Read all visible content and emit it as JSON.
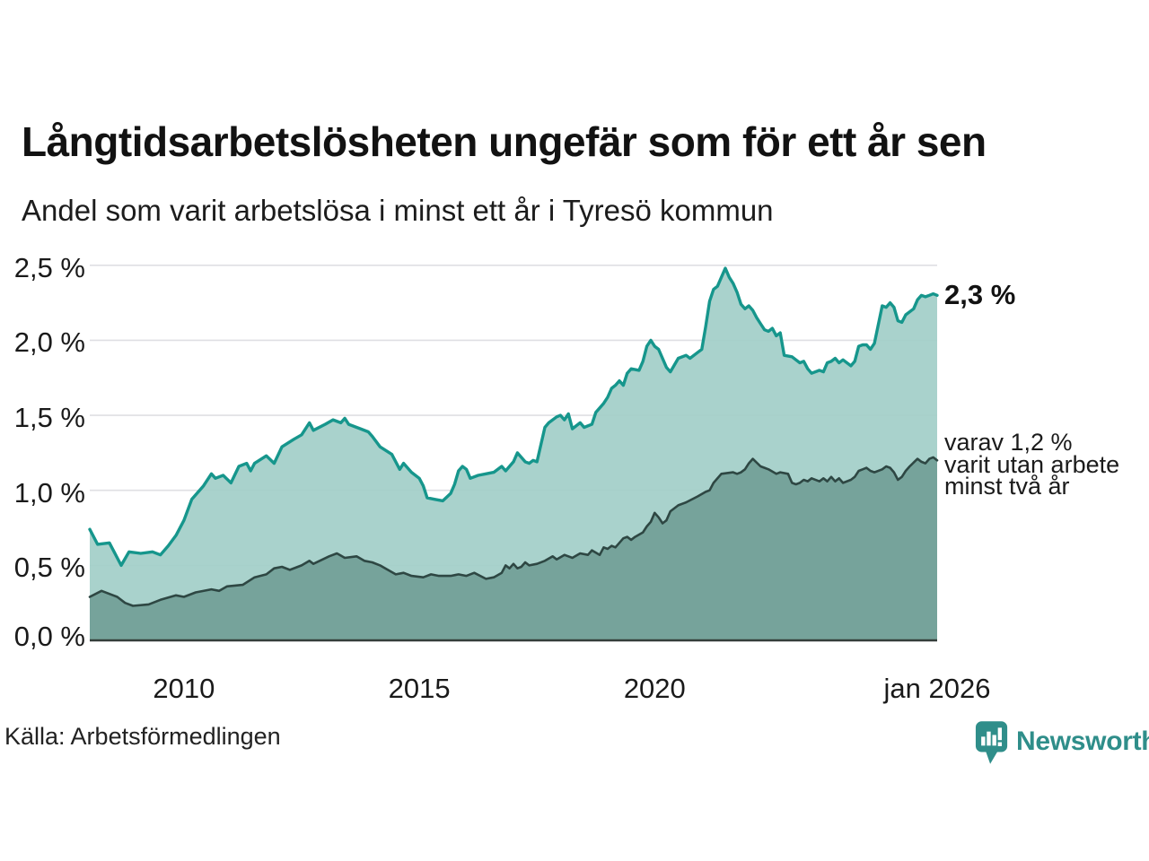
{
  "title": "Långtidsarbetslösheten ungefär som för ett år sen",
  "subtitle": "Andel som varit arbetslösa i minst ett år i Tyresö kommun",
  "source": "Källa: Arbetsförmedlingen",
  "branding": {
    "name": "Newsworthy"
  },
  "annotations": {
    "latest_total": "2,3 %",
    "secondary_line1": "varav 1,2 %",
    "secondary_line2": "varit utan arbete",
    "secondary_line3": "minst två år"
  },
  "colors": {
    "series1_stroke": "#16968c",
    "series1_fill": "#a2cfc8",
    "series2_stroke": "#2e4743",
    "series2_fill": "#73a098",
    "gridline": "#dfdfe3",
    "axis_line": "#343e3b",
    "text": "#1a1a1a",
    "brand_teal": "#2f8e8a"
  },
  "chart_data": {
    "type": "area",
    "title": "Långtidsarbetslösheten ungefär som för ett år sen",
    "subtitle": "Andel som varit arbetslösa i minst ett år i Tyresö kommun",
    "x_unit": "months since 2008-01 (monthly data, ends jan 2026)",
    "ylim": [
      0,
      2.5
    ],
    "grid": "horizontal",
    "y_ticks": [
      {
        "value": 0.0,
        "label": "0,0 %"
      },
      {
        "value": 0.5,
        "label": "0,5 %"
      },
      {
        "value": 1.0,
        "label": "1,0 %"
      },
      {
        "value": 1.5,
        "label": "1,5 %"
      },
      {
        "value": 2.0,
        "label": "2,0 %"
      },
      {
        "value": 2.5,
        "label": "2,5 %"
      }
    ],
    "x_ticks": [
      {
        "month": 24,
        "label": "2010"
      },
      {
        "month": 84,
        "label": "2015"
      },
      {
        "month": 144,
        "label": "2020"
      },
      {
        "month": 216,
        "label": "jan 2026"
      }
    ],
    "series": [
      {
        "name": "Andel arbetslösa minst ett år",
        "latest_value": 2.3,
        "points": [
          [
            0,
            0.74
          ],
          [
            2,
            0.64
          ],
          [
            5,
            0.65
          ],
          [
            8,
            0.5
          ],
          [
            10,
            0.59
          ],
          [
            13,
            0.58
          ],
          [
            16,
            0.59
          ],
          [
            18,
            0.57
          ],
          [
            20,
            0.63
          ],
          [
            22,
            0.7
          ],
          [
            24,
            0.8
          ],
          [
            26,
            0.94
          ],
          [
            29,
            1.03
          ],
          [
            31,
            1.11
          ],
          [
            32,
            1.08
          ],
          [
            34,
            1.1
          ],
          [
            36,
            1.05
          ],
          [
            38,
            1.16
          ],
          [
            40,
            1.18
          ],
          [
            41,
            1.13
          ],
          [
            42,
            1.18
          ],
          [
            45,
            1.23
          ],
          [
            47,
            1.18
          ],
          [
            49,
            1.29
          ],
          [
            52,
            1.34
          ],
          [
            54,
            1.37
          ],
          [
            56,
            1.45
          ],
          [
            57,
            1.4
          ],
          [
            60,
            1.44
          ],
          [
            62,
            1.47
          ],
          [
            64,
            1.45
          ],
          [
            65,
            1.48
          ],
          [
            66,
            1.44
          ],
          [
            69,
            1.41
          ],
          [
            71,
            1.39
          ],
          [
            72,
            1.36
          ],
          [
            74,
            1.29
          ],
          [
            77,
            1.24
          ],
          [
            79,
            1.14
          ],
          [
            80,
            1.18
          ],
          [
            82,
            1.12
          ],
          [
            84,
            1.08
          ],
          [
            85,
            1.03
          ],
          [
            86,
            0.95
          ],
          [
            88,
            0.94
          ],
          [
            90,
            0.93
          ],
          [
            92,
            0.98
          ],
          [
            93,
            1.04
          ],
          [
            94,
            1.13
          ],
          [
            95,
            1.16
          ],
          [
            96,
            1.14
          ],
          [
            97,
            1.08
          ],
          [
            99,
            1.1
          ],
          [
            101,
            1.11
          ],
          [
            103,
            1.12
          ],
          [
            105,
            1.16
          ],
          [
            106,
            1.13
          ],
          [
            108,
            1.19
          ],
          [
            109,
            1.25
          ],
          [
            111,
            1.19
          ],
          [
            112,
            1.18
          ],
          [
            113,
            1.2
          ],
          [
            114,
            1.19
          ],
          [
            116,
            1.42
          ],
          [
            117,
            1.45
          ],
          [
            119,
            1.49
          ],
          [
            120,
            1.5
          ],
          [
            121,
            1.47
          ],
          [
            122,
            1.51
          ],
          [
            123,
            1.41
          ],
          [
            125,
            1.45
          ],
          [
            126,
            1.42
          ],
          [
            128,
            1.44
          ],
          [
            129,
            1.52
          ],
          [
            131,
            1.58
          ],
          [
            132,
            1.62
          ],
          [
            133,
            1.68
          ],
          [
            134,
            1.7
          ],
          [
            135,
            1.73
          ],
          [
            136,
            1.7
          ],
          [
            137,
            1.78
          ],
          [
            138,
            1.81
          ],
          [
            140,
            1.8
          ],
          [
            141,
            1.86
          ],
          [
            142,
            1.96
          ],
          [
            143,
            2.0
          ],
          [
            144,
            1.96
          ],
          [
            145,
            1.94
          ],
          [
            147,
            1.82
          ],
          [
            148,
            1.79
          ],
          [
            150,
            1.88
          ],
          [
            152,
            1.9
          ],
          [
            153,
            1.88
          ],
          [
            155,
            1.92
          ],
          [
            156,
            1.94
          ],
          [
            157,
            2.09
          ],
          [
            158,
            2.26
          ],
          [
            159,
            2.34
          ],
          [
            160,
            2.36
          ],
          [
            161,
            2.42
          ],
          [
            162,
            2.48
          ],
          [
            163,
            2.42
          ],
          [
            164,
            2.38
          ],
          [
            165,
            2.32
          ],
          [
            166,
            2.24
          ],
          [
            167,
            2.21
          ],
          [
            168,
            2.23
          ],
          [
            169,
            2.2
          ],
          [
            170,
            2.15
          ],
          [
            171,
            2.11
          ],
          [
            172,
            2.07
          ],
          [
            173,
            2.06
          ],
          [
            174,
            2.08
          ],
          [
            175,
            2.03
          ],
          [
            176,
            2.05
          ],
          [
            177,
            1.9
          ],
          [
            179,
            1.89
          ],
          [
            181,
            1.85
          ],
          [
            182,
            1.86
          ],
          [
            183,
            1.81
          ],
          [
            184,
            1.78
          ],
          [
            186,
            1.8
          ],
          [
            187,
            1.79
          ],
          [
            188,
            1.85
          ],
          [
            189,
            1.86
          ],
          [
            190,
            1.88
          ],
          [
            191,
            1.85
          ],
          [
            192,
            1.87
          ],
          [
            194,
            1.83
          ],
          [
            195,
            1.86
          ],
          [
            196,
            1.96
          ],
          [
            197,
            1.97
          ],
          [
            198,
            1.97
          ],
          [
            199,
            1.94
          ],
          [
            200,
            1.98
          ],
          [
            202,
            2.23
          ],
          [
            203,
            2.22
          ],
          [
            204,
            2.25
          ],
          [
            205,
            2.22
          ],
          [
            206,
            2.13
          ],
          [
            207,
            2.12
          ],
          [
            208,
            2.17
          ],
          [
            210,
            2.21
          ],
          [
            211,
            2.27
          ],
          [
            212,
            2.3
          ],
          [
            213,
            2.29
          ],
          [
            214,
            2.3
          ],
          [
            215,
            2.31
          ],
          [
            216,
            2.3
          ]
        ]
      },
      {
        "name": "varav utan arbete minst två år",
        "latest_value": 1.2,
        "points": [
          [
            0,
            0.29
          ],
          [
            3,
            0.33
          ],
          [
            7,
            0.29
          ],
          [
            9,
            0.25
          ],
          [
            11,
            0.23
          ],
          [
            15,
            0.24
          ],
          [
            18,
            0.27
          ],
          [
            22,
            0.3
          ],
          [
            24,
            0.29
          ],
          [
            27,
            0.32
          ],
          [
            31,
            0.34
          ],
          [
            33,
            0.33
          ],
          [
            35,
            0.36
          ],
          [
            39,
            0.37
          ],
          [
            42,
            0.42
          ],
          [
            45,
            0.44
          ],
          [
            47,
            0.48
          ],
          [
            49,
            0.49
          ],
          [
            51,
            0.47
          ],
          [
            54,
            0.5
          ],
          [
            56,
            0.53
          ],
          [
            57,
            0.51
          ],
          [
            61,
            0.56
          ],
          [
            63,
            0.58
          ],
          [
            65,
            0.55
          ],
          [
            68,
            0.56
          ],
          [
            70,
            0.53
          ],
          [
            72,
            0.52
          ],
          [
            74,
            0.5
          ],
          [
            76,
            0.47
          ],
          [
            78,
            0.44
          ],
          [
            80,
            0.45
          ],
          [
            82,
            0.43
          ],
          [
            85,
            0.42
          ],
          [
            87,
            0.44
          ],
          [
            89,
            0.43
          ],
          [
            92,
            0.43
          ],
          [
            94,
            0.44
          ],
          [
            96,
            0.43
          ],
          [
            98,
            0.45
          ],
          [
            101,
            0.41
          ],
          [
            103,
            0.42
          ],
          [
            105,
            0.45
          ],
          [
            106,
            0.5
          ],
          [
            107,
            0.48
          ],
          [
            108,
            0.51
          ],
          [
            109,
            0.48
          ],
          [
            110,
            0.49
          ],
          [
            111,
            0.52
          ],
          [
            112,
            0.5
          ],
          [
            114,
            0.51
          ],
          [
            116,
            0.53
          ],
          [
            118,
            0.56
          ],
          [
            119,
            0.54
          ],
          [
            121,
            0.57
          ],
          [
            123,
            0.55
          ],
          [
            125,
            0.58
          ],
          [
            127,
            0.57
          ],
          [
            128,
            0.6
          ],
          [
            130,
            0.57
          ],
          [
            131,
            0.62
          ],
          [
            132,
            0.61
          ],
          [
            133,
            0.63
          ],
          [
            134,
            0.62
          ],
          [
            136,
            0.68
          ],
          [
            137,
            0.69
          ],
          [
            138,
            0.67
          ],
          [
            139,
            0.69
          ],
          [
            141,
            0.72
          ],
          [
            142,
            0.76
          ],
          [
            143,
            0.79
          ],
          [
            144,
            0.85
          ],
          [
            145,
            0.82
          ],
          [
            146,
            0.78
          ],
          [
            147,
            0.8
          ],
          [
            148,
            0.86
          ],
          [
            150,
            0.9
          ],
          [
            152,
            0.92
          ],
          [
            155,
            0.96
          ],
          [
            157,
            0.99
          ],
          [
            158,
            1.0
          ],
          [
            159,
            1.05
          ],
          [
            161,
            1.11
          ],
          [
            164,
            1.12
          ],
          [
            165,
            1.11
          ],
          [
            166,
            1.12
          ],
          [
            167,
            1.14
          ],
          [
            168,
            1.18
          ],
          [
            169,
            1.21
          ],
          [
            171,
            1.16
          ],
          [
            172,
            1.15
          ],
          [
            173,
            1.14
          ],
          [
            175,
            1.11
          ],
          [
            176,
            1.12
          ],
          [
            178,
            1.11
          ],
          [
            179,
            1.05
          ],
          [
            180,
            1.04
          ],
          [
            181,
            1.05
          ],
          [
            182,
            1.07
          ],
          [
            183,
            1.06
          ],
          [
            184,
            1.08
          ],
          [
            186,
            1.06
          ],
          [
            187,
            1.08
          ],
          [
            188,
            1.06
          ],
          [
            189,
            1.09
          ],
          [
            190,
            1.06
          ],
          [
            191,
            1.08
          ],
          [
            192,
            1.05
          ],
          [
            194,
            1.07
          ],
          [
            195,
            1.09
          ],
          [
            196,
            1.13
          ],
          [
            197,
            1.14
          ],
          [
            198,
            1.15
          ],
          [
            199,
            1.13
          ],
          [
            200,
            1.12
          ],
          [
            202,
            1.14
          ],
          [
            203,
            1.16
          ],
          [
            204,
            1.15
          ],
          [
            205,
            1.12
          ],
          [
            206,
            1.07
          ],
          [
            207,
            1.09
          ],
          [
            208,
            1.13
          ],
          [
            209,
            1.16
          ],
          [
            211,
            1.21
          ],
          [
            212,
            1.19
          ],
          [
            213,
            1.18
          ],
          [
            214,
            1.21
          ],
          [
            215,
            1.22
          ],
          [
            216,
            1.2
          ]
        ]
      }
    ]
  }
}
